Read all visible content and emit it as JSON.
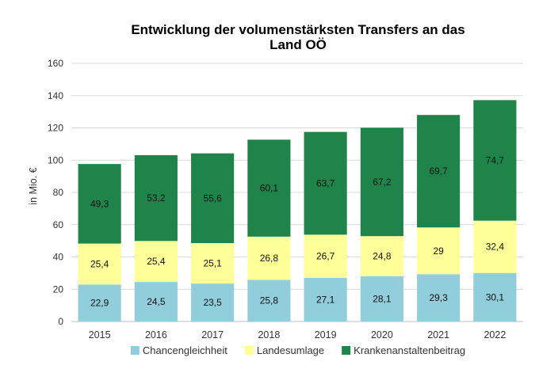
{
  "chart_data": {
    "type": "bar",
    "stacked": true,
    "title_lines": [
      "Entwicklung der volumenstärksten Transfers an das",
      "Land OÖ"
    ],
    "xlabel": "",
    "ylabel": "in Mio. €",
    "ylim": [
      0,
      160
    ],
    "yticks": [
      0,
      20,
      40,
      60,
      80,
      100,
      120,
      140,
      160
    ],
    "grid": true,
    "legend_position": "bottom",
    "categories": [
      "2015",
      "2016",
      "2017",
      "2018",
      "2019",
      "2020",
      "2021",
      "2022"
    ],
    "series": [
      {
        "name": "Chancengleichheit",
        "color": "#92cddc",
        "values": [
          22.9,
          24.5,
          23.5,
          25.8,
          27.1,
          28.1,
          29.3,
          30.1
        ],
        "labels": [
          "22,9",
          "24,5",
          "23,5",
          "25,8",
          "27,1",
          "28,1",
          "29,3",
          "30,1"
        ]
      },
      {
        "name": "Landesumlage",
        "color": "#ffff99",
        "values": [
          25.4,
          25.4,
          25.1,
          26.8,
          26.7,
          24.8,
          29,
          32.4
        ],
        "labels": [
          "25,4",
          "25,4",
          "25,1",
          "26,8",
          "26,7",
          "24,8",
          "29",
          "32,4"
        ]
      },
      {
        "name": "Krankenanstaltenbeitrag",
        "color": "#1e8449",
        "values": [
          49.3,
          53.2,
          55.6,
          60.1,
          63.7,
          67.2,
          69.7,
          74.7
        ],
        "labels": [
          "49,3",
          "53,2",
          "55,6",
          "60,1",
          "63,7",
          "67,2",
          "69,7",
          "74,7"
        ]
      }
    ]
  }
}
